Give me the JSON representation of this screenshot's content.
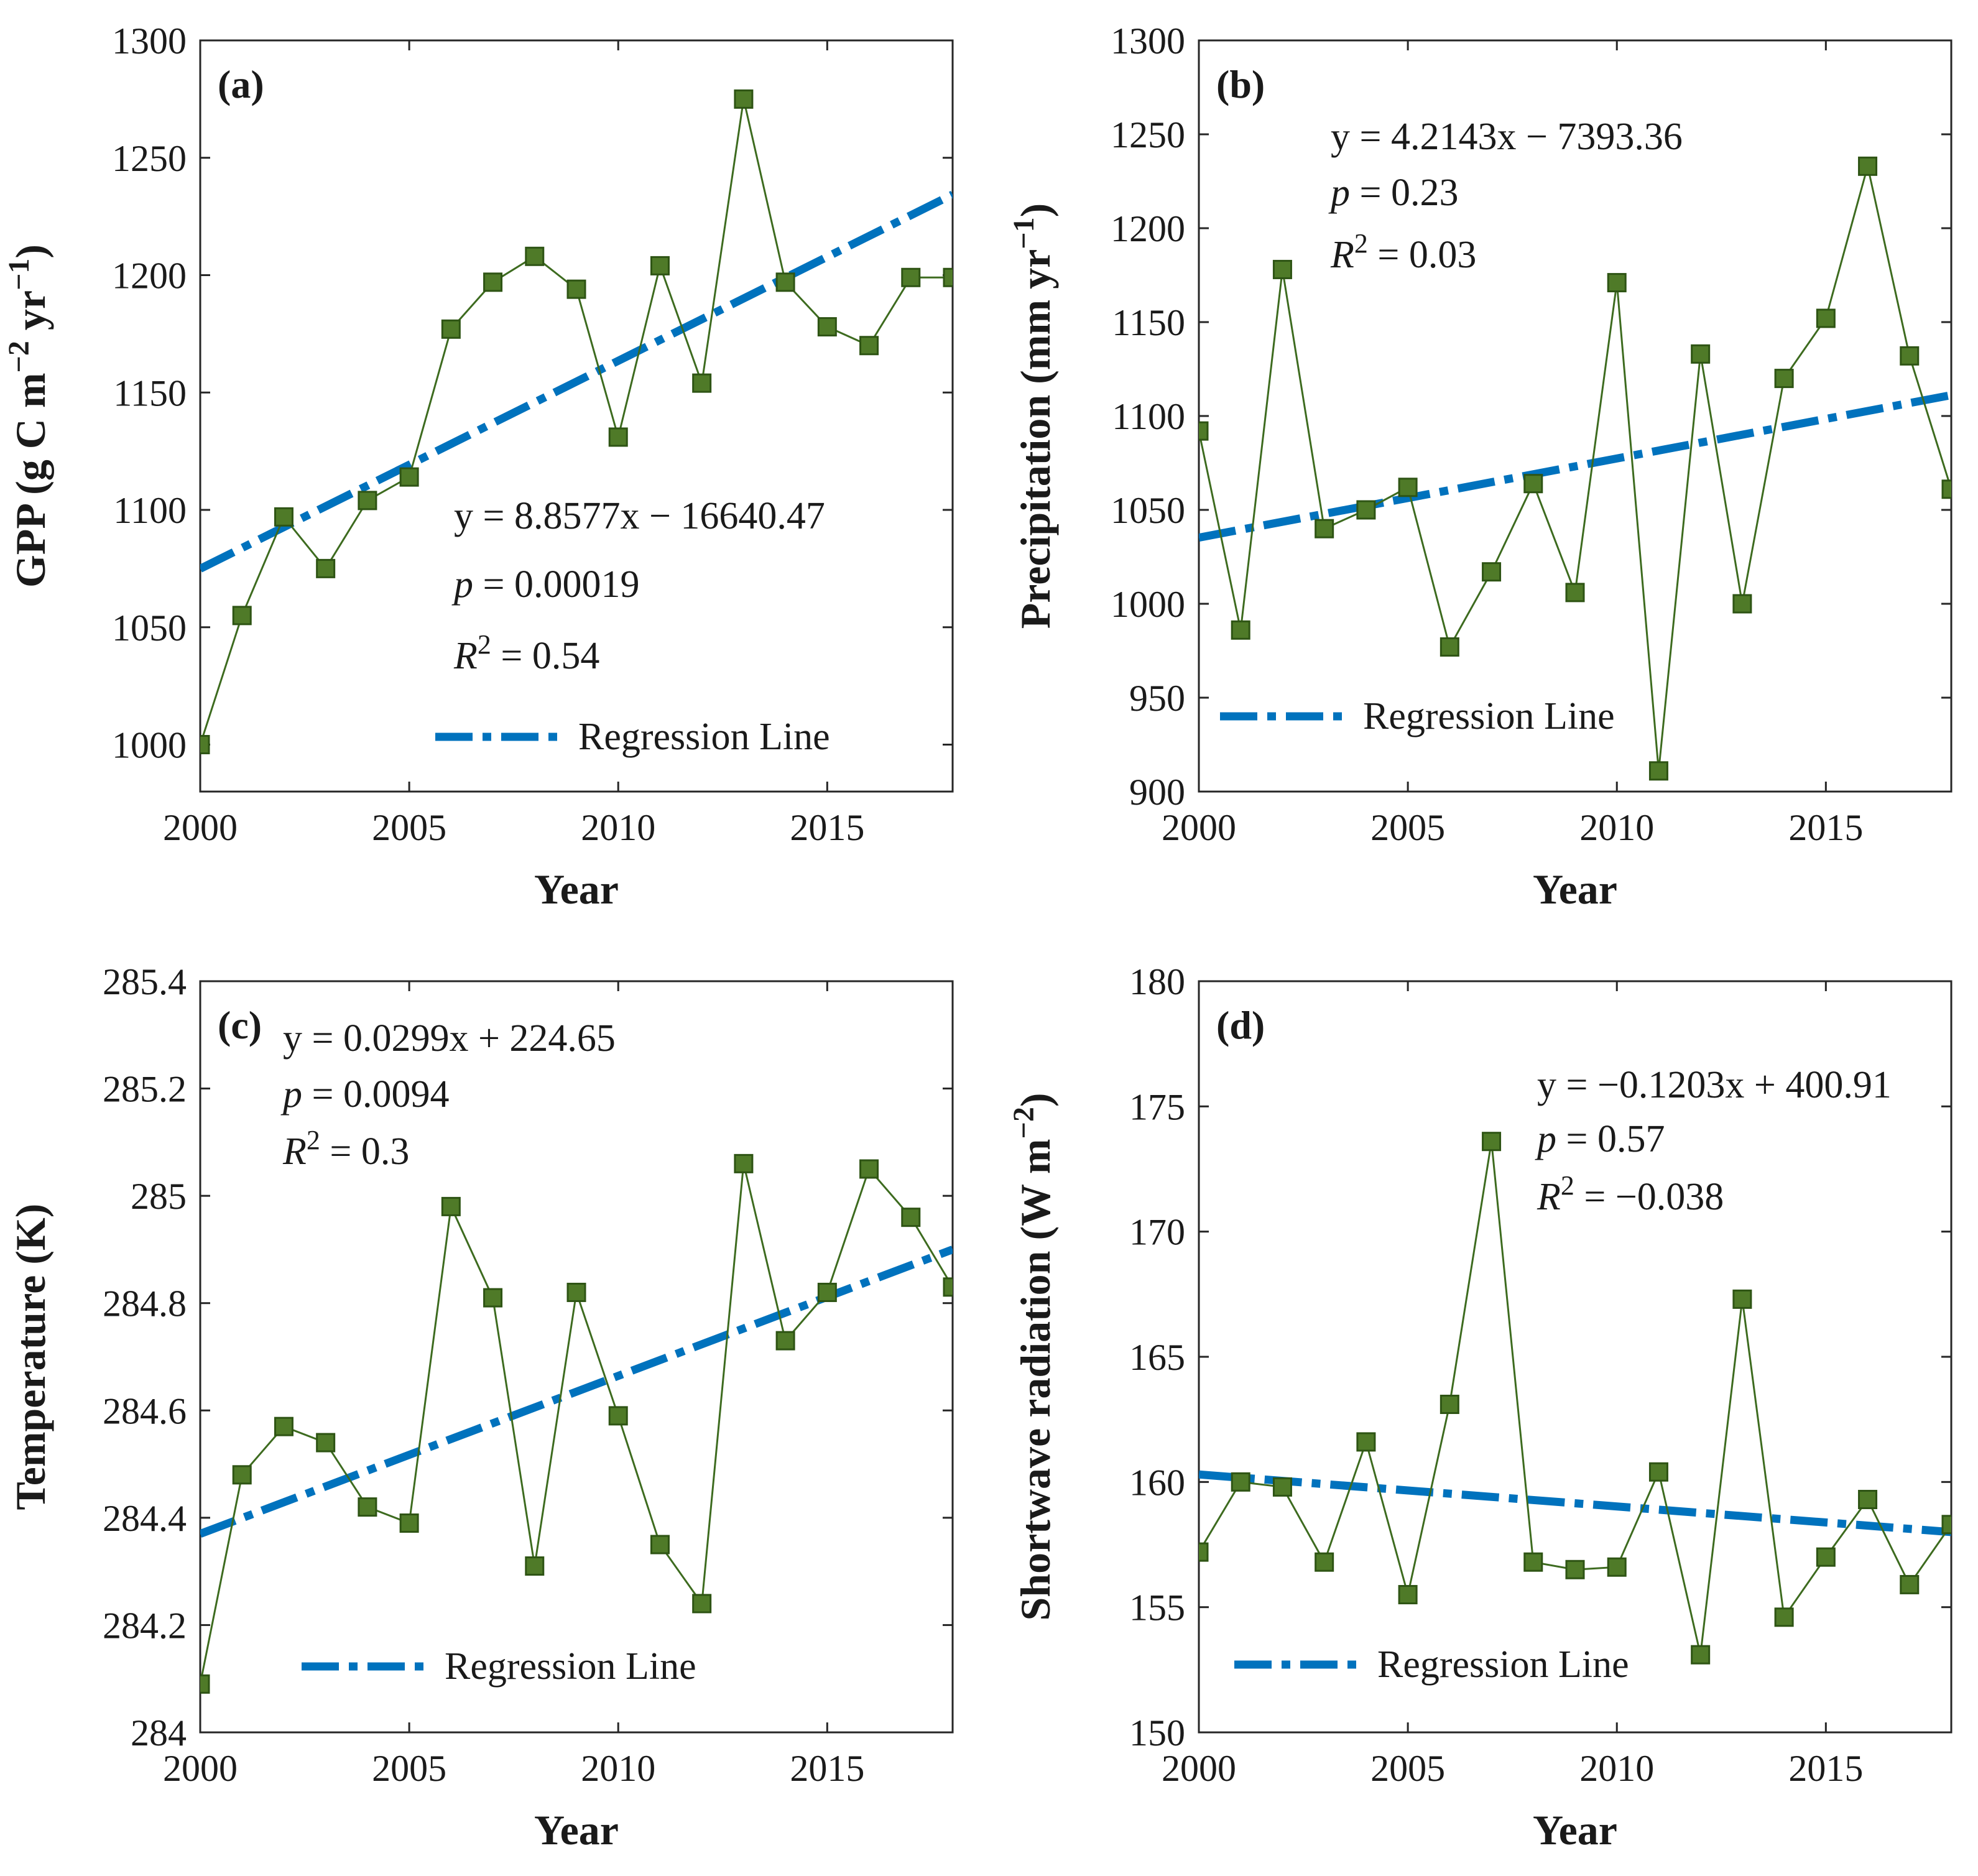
{
  "colors": {
    "regression": "#0072BD",
    "series_line": "#3d6b1f",
    "marker_fill": "#4f7a28",
    "marker_edge": "#2e5414",
    "axis": "#262626"
  },
  "chart_data": [
    {
      "type": "line",
      "panel": "(a)",
      "xlabel": "Year",
      "ylabel": "GPP (g C m",
      "ylabel_sup1": "−2",
      "ylabel_mid": " yr",
      "ylabel_sup2": "−1",
      "ylabel_end": ")",
      "xlim": [
        2000,
        2018
      ],
      "ylim": [
        980,
        1300
      ],
      "xticks": [
        2000,
        2005,
        2010,
        2015
      ],
      "yticks": [
        1000,
        1050,
        1100,
        1150,
        1200,
        1250,
        1300
      ],
      "x": [
        2000,
        2001,
        2002,
        2003,
        2004,
        2005,
        2006,
        2007,
        2008,
        2009,
        2010,
        2011,
        2012,
        2013,
        2014,
        2015,
        2016,
        2017,
        2018
      ],
      "values": [
        1000,
        1055,
        1097,
        1075,
        1104,
        1114,
        1177,
        1197,
        1208,
        1194,
        1131,
        1204,
        1154,
        1275,
        1197,
        1178,
        1170,
        1199,
        1199
      ],
      "regression": {
        "slope": 8.8577,
        "intercept": -16640.47
      },
      "equation": "y = 8.8577x − 16640.47",
      "p_label": "p",
      "p_text": " = 0.00019",
      "r2_label": "R",
      "r2_sup": "2",
      "r2_text": " = 0.54",
      "legend_label": "Regression Line",
      "legend_position": "bottom-right"
    },
    {
      "type": "line",
      "panel": "(b)",
      "xlabel": "Year",
      "ylabel": "Precipitation (mm yr",
      "ylabel_sup1": "−1",
      "ylabel_mid": "",
      "ylabel_sup2": "",
      "ylabel_end": ")",
      "xlim": [
        2000,
        2018
      ],
      "ylim": [
        900,
        1300
      ],
      "xticks": [
        2000,
        2005,
        2010,
        2015
      ],
      "yticks": [
        900,
        950,
        1000,
        1050,
        1100,
        1150,
        1200,
        1250,
        1300
      ],
      "x": [
        2000,
        2001,
        2002,
        2003,
        2004,
        2005,
        2006,
        2007,
        2008,
        2009,
        2010,
        2011,
        2012,
        2013,
        2014,
        2015,
        2016,
        2017,
        2018
      ],
      "values": [
        1092,
        986,
        1178,
        1040,
        1050,
        1062,
        977,
        1017,
        1064,
        1006,
        1171,
        911,
        1133,
        1000,
        1120,
        1152,
        1233,
        1132,
        1061
      ],
      "regression": {
        "slope": 4.2143,
        "intercept": -7393.36
      },
      "equation": "y = 4.2143x − 7393.36",
      "p_label": "p",
      "p_text": " = 0.23",
      "r2_label": "R",
      "r2_sup": "2",
      "r2_text": " = 0.03",
      "legend_label": "Regression Line",
      "legend_position": "bottom-left"
    },
    {
      "type": "line",
      "panel": "(c)",
      "xlabel": "Year",
      "ylabel": "Temperature (K)",
      "ylabel_sup1": "",
      "ylabel_mid": "",
      "ylabel_sup2": "",
      "ylabel_end": "",
      "xlim": [
        2000,
        2018
      ],
      "ylim": [
        284,
        285.4
      ],
      "xticks": [
        2000,
        2005,
        2010,
        2015
      ],
      "yticks": [
        284,
        284.2,
        284.4,
        284.6,
        284.8,
        285,
        285.2,
        285.4
      ],
      "ytick_labels": [
        "284",
        "284.2",
        "284.4",
        "284.6",
        "284.8",
        "285",
        "285.2",
        "285.4"
      ],
      "x": [
        2000,
        2001,
        2002,
        2003,
        2004,
        2005,
        2006,
        2007,
        2008,
        2009,
        2010,
        2011,
        2012,
        2013,
        2014,
        2015,
        2016,
        2017,
        2018
      ],
      "values": [
        284.09,
        284.48,
        284.57,
        284.54,
        284.42,
        284.39,
        284.98,
        284.81,
        284.31,
        284.82,
        284.59,
        284.35,
        284.24,
        285.06,
        284.73,
        284.82,
        285.05,
        284.96,
        284.83
      ],
      "regression": {
        "slope": 0.0299,
        "intercept": 224.65
      },
      "regression_endpoints": [
        284.37,
        284.9
      ],
      "equation": "y = 0.0299x + 224.65",
      "p_label": "p",
      "p_text": " = 0.0094",
      "r2_label": "R",
      "r2_sup": "2",
      "r2_text": " = 0.3",
      "legend_label": "Regression Line",
      "legend_position": "bottom-left"
    },
    {
      "type": "line",
      "panel": "(d)",
      "xlabel": "Year",
      "ylabel": "Shortwave radiation (W m",
      "ylabel_sup1": "−2",
      "ylabel_mid": "",
      "ylabel_sup2": "",
      "ylabel_end": ")",
      "xlim": [
        2000,
        2018
      ],
      "ylim": [
        150,
        180
      ],
      "xticks": [
        2000,
        2005,
        2010,
        2015
      ],
      "yticks": [
        150,
        155,
        160,
        165,
        170,
        175,
        180
      ],
      "x": [
        2000,
        2001,
        2002,
        2003,
        2004,
        2005,
        2006,
        2007,
        2008,
        2009,
        2010,
        2011,
        2012,
        2013,
        2014,
        2015,
        2016,
        2017,
        2018
      ],
      "values": [
        157.2,
        160.0,
        159.8,
        156.8,
        161.6,
        155.5,
        163.1,
        173.6,
        156.8,
        156.5,
        156.6,
        160.4,
        153.1,
        167.3,
        154.6,
        157.0,
        159.3,
        155.9,
        158.3
      ],
      "regression": {
        "slope": -0.1203,
        "intercept": 400.91
      },
      "regression_endpoints": [
        160.3,
        158.0
      ],
      "equation": "y = −0.1203x + 400.91",
      "p_label": "p",
      "p_text": " = 0.57",
      "r2_label": "R",
      "r2_sup": "2",
      "r2_text": " = −0.038",
      "legend_label": "Regression Line",
      "legend_position": "bottom-left"
    }
  ]
}
